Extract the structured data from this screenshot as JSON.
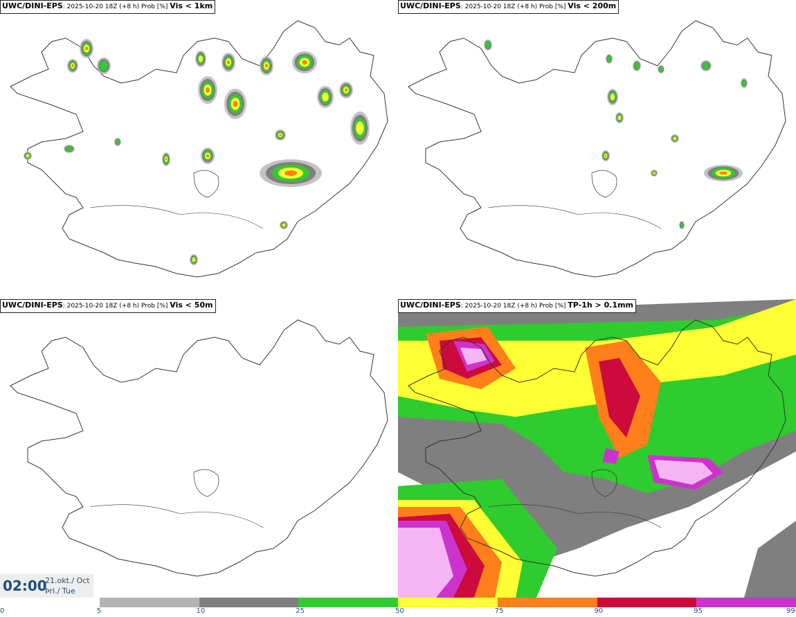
{
  "panels": [
    {
      "source": "UWC/DINI-EPS",
      "meta": ": 2025-10-20 18Z (+8 h) Prob [%] ",
      "param": "Vis < 1km"
    },
    {
      "source": "UWC/DINI-EPS",
      "meta": ": 2025-10-20 18Z (+8 h) Prob [%] ",
      "param": "Vis < 200m"
    },
    {
      "source": "UWC/DINI-EPS",
      "meta": ": 2025-10-20 18Z (+8 h) Prob [%] ",
      "param": "Vis < 50m"
    },
    {
      "source": "UWC/DINI-EPS",
      "meta": ": 2025-10-20 18Z (+8 h) Prob [%] ",
      "param": "TP-1h > 0.1mm"
    }
  ],
  "valid_time": {
    "time": "02:00",
    "date_line1": "21.okt./ Oct",
    "date_line2": "Þri./ Tue"
  },
  "colorbar": {
    "ticks": [
      "0",
      "5",
      "10",
      "25",
      "50",
      "75",
      "90",
      "95",
      "99"
    ],
    "colors": [
      "#ffffff",
      "#b4b4b4",
      "#7f7f7f",
      "#2ecc2e",
      "#ffff33",
      "#ff7f1a",
      "#cc0a3c",
      "#cc33cc",
      "#f5b5f5"
    ]
  },
  "colors": {
    "coast": "#333333",
    "accent": "#1f4e79"
  }
}
